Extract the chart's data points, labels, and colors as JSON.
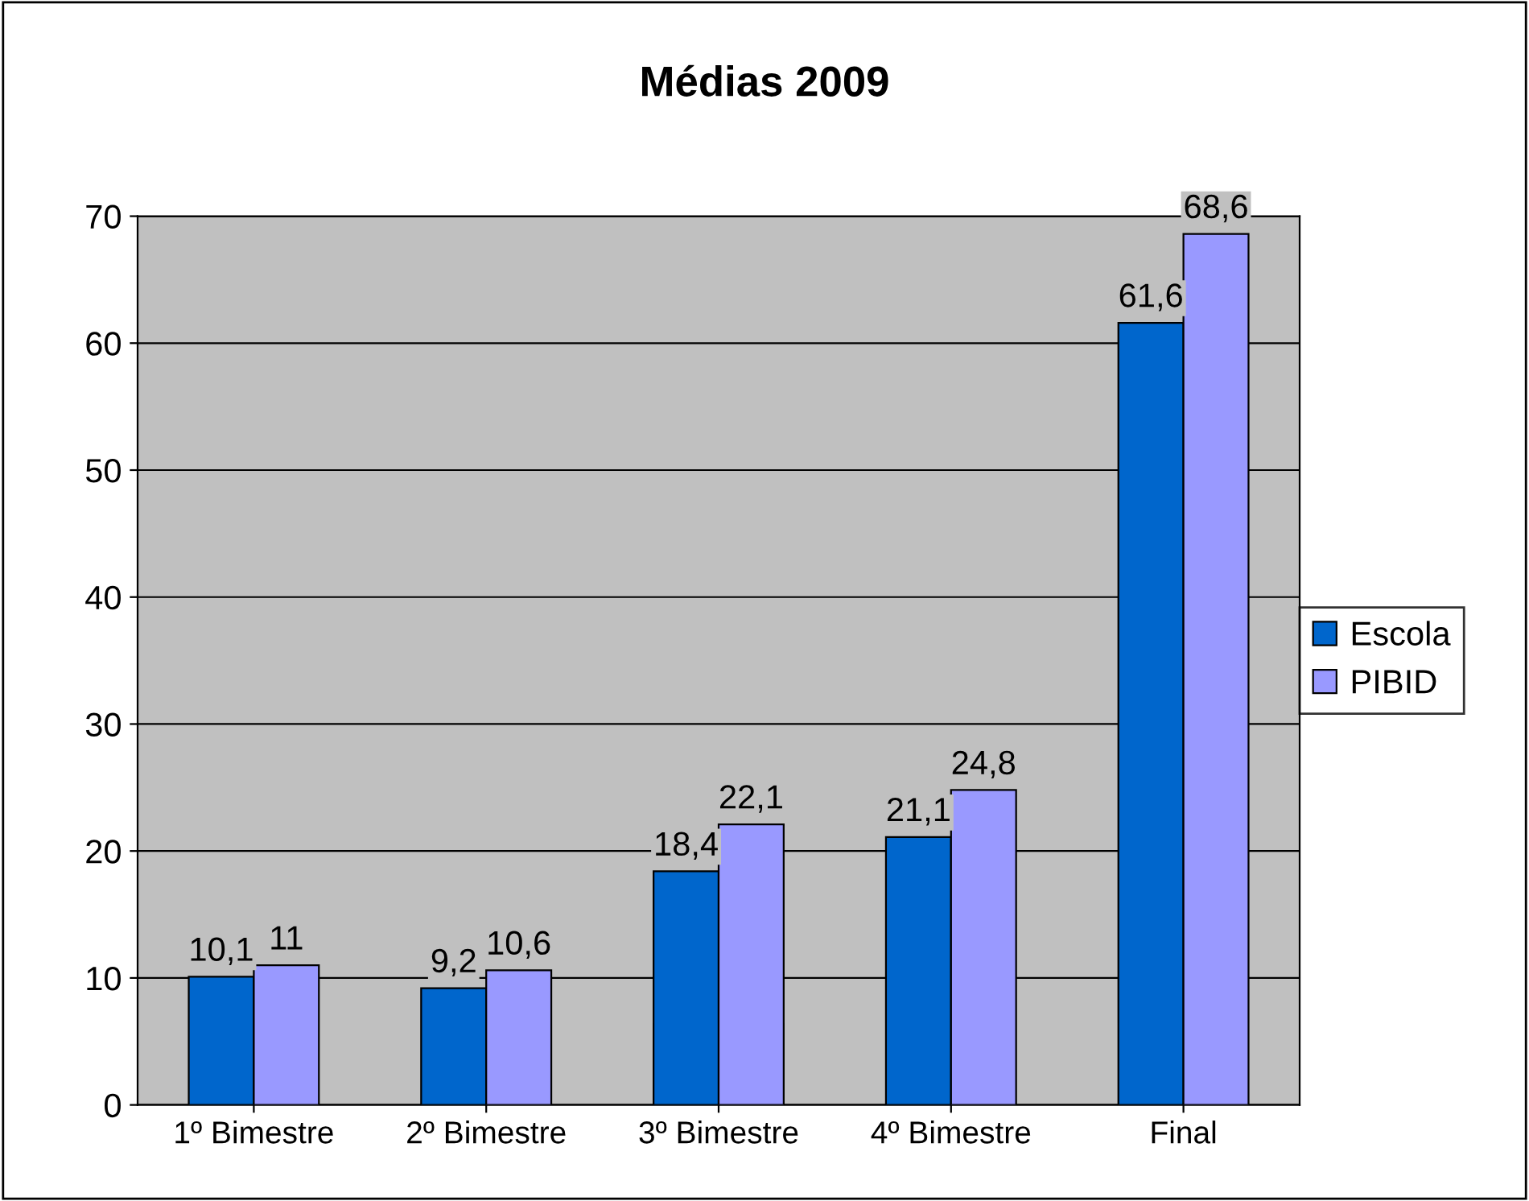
{
  "chart_data": {
    "type": "bar",
    "title": "Médias 2009",
    "categories": [
      "1º Bimestre",
      "2º Bimestre",
      "3º Bimestre",
      "4º Bimestre",
      "Final"
    ],
    "series": [
      {
        "name": "Escola",
        "color": "#0066cc",
        "values": [
          10.1,
          9.2,
          18.4,
          21.1,
          61.6
        ],
        "value_labels": [
          "10,1",
          "9,2",
          "18,4",
          "21,1",
          "61,6"
        ]
      },
      {
        "name": "PIBID",
        "color": "#9999ff",
        "values": [
          11,
          10.6,
          22.1,
          24.8,
          68.6
        ],
        "value_labels": [
          "11",
          "10,6",
          "22,1",
          "24,8",
          "68,6"
        ]
      }
    ],
    "ylim": [
      0,
      70
    ],
    "yticks": [
      0,
      10,
      20,
      30,
      40,
      50,
      60,
      70
    ],
    "grid": "y",
    "legend": "right"
  }
}
